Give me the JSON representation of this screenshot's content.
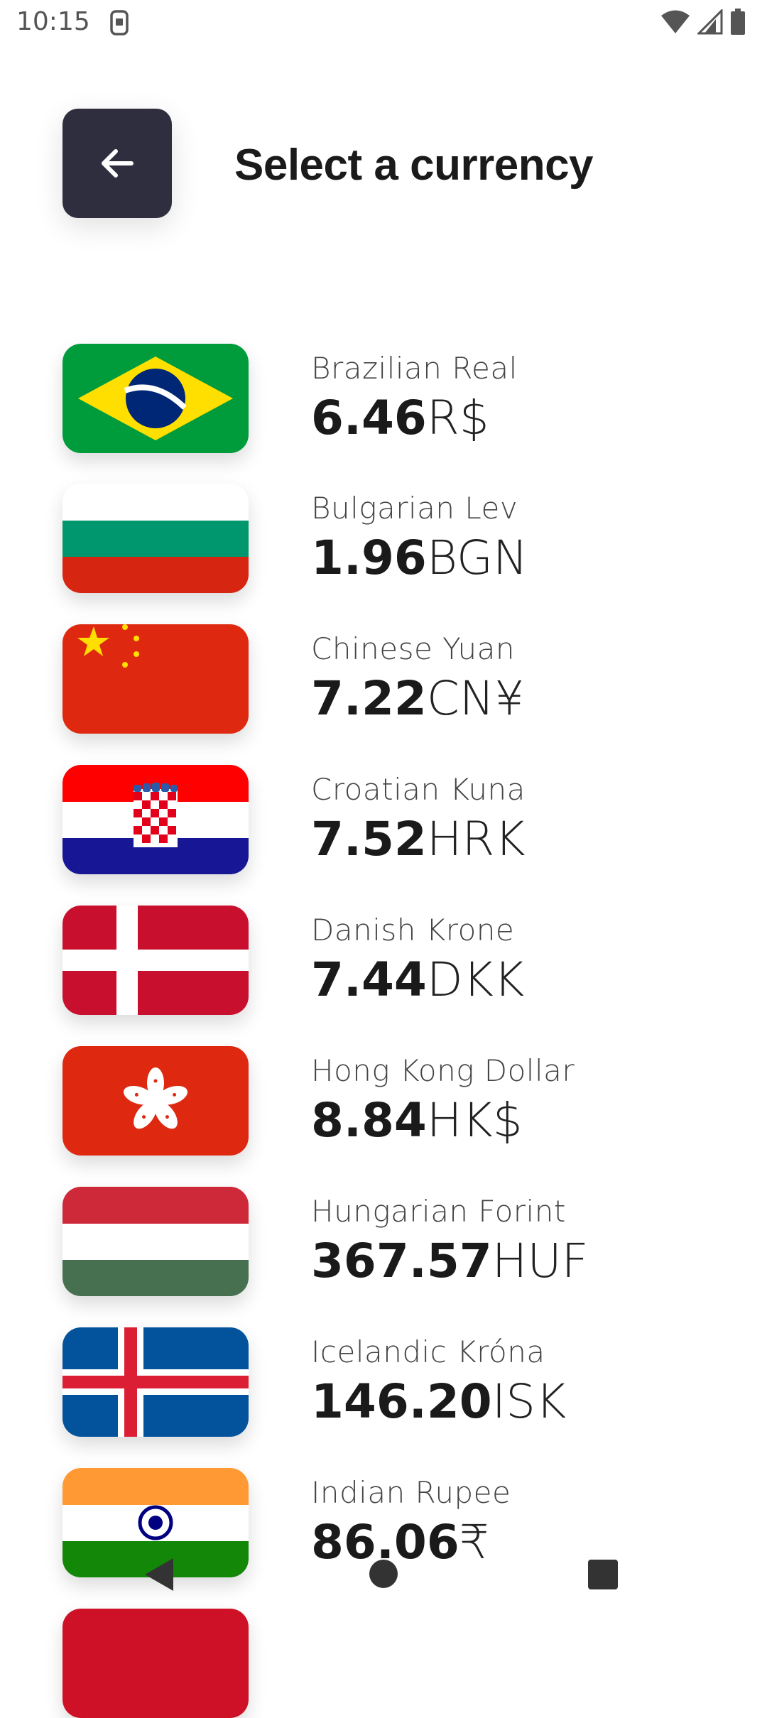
{
  "status_bar": {
    "time": "10:15",
    "icons": [
      "sim-card-icon",
      "wifi-icon",
      "signal-icon",
      "battery-icon"
    ]
  },
  "header": {
    "back_icon": "arrow-left-icon",
    "title": "Select a currency"
  },
  "currencies": [
    {
      "name": "Brazilian Real",
      "amount": "6.46",
      "code": "R$",
      "flag": "brazil-flag"
    },
    {
      "name": "Bulgarian Lev",
      "amount": "1.96",
      "code": "BGN",
      "flag": "bulgaria-flag"
    },
    {
      "name": "Chinese Yuan",
      "amount": "7.22",
      "code": "CN¥",
      "flag": "china-flag"
    },
    {
      "name": "Croatian Kuna",
      "amount": "7.52",
      "code": "HRK",
      "flag": "croatia-flag"
    },
    {
      "name": "Danish Krone",
      "amount": "7.44",
      "code": "DKK",
      "flag": "denmark-flag"
    },
    {
      "name": "Hong Kong Dollar",
      "amount": "8.84",
      "code": "HK$",
      "flag": "hong-kong-flag"
    },
    {
      "name": "Hungarian Forint",
      "amount": "367.57",
      "code": "HUF",
      "flag": "hungary-flag"
    },
    {
      "name": "Icelandic Króna",
      "amount": "146.20",
      "code": "ISK",
      "flag": "iceland-flag"
    },
    {
      "name": "Indian Rupee",
      "amount": "86.06",
      "code": "₹",
      "flag": "india-flag"
    }
  ],
  "nav_bar": {
    "icons": [
      "nav-back-icon",
      "nav-home-icon",
      "nav-recents-icon"
    ]
  }
}
